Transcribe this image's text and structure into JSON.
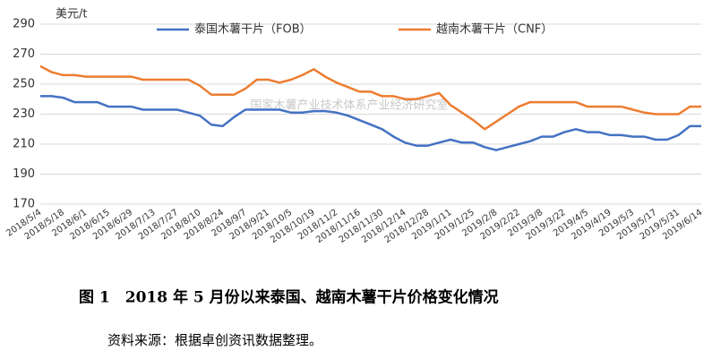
{
  "chart_data": {
    "type": "line",
    "y_label": "美元/t",
    "watermark": "国家木薯产业技术体系产业经济研究室",
    "caption": "图 1　2018 年 5 月份以来泰国、越南木薯干片价格变化情况",
    "source": "资料来源：根据卓创资讯数据整理。",
    "categories": [
      "2018/5/4",
      null,
      "2018/5/18",
      null,
      "2018/6/1",
      null,
      "2018/6/15",
      null,
      "2018/6/29",
      null,
      "2018/7/13",
      null,
      "2018/7/27",
      null,
      "2018/8/10",
      null,
      "2018/8/24",
      null,
      "2018/9/7",
      null,
      "2018/9/21",
      null,
      "2018/10/5",
      null,
      "2018/10/19",
      null,
      "2018/11/2",
      null,
      "2018/11/16",
      null,
      "2018/11/30",
      null,
      "2018/12/14",
      null,
      "2018/12/28",
      null,
      "2019/1/11",
      null,
      "2019/1/25",
      null,
      "2019/2/8",
      null,
      "2019/2/22",
      null,
      "2019/3/8",
      null,
      "2019/3/22",
      null,
      "2019/4/5",
      null,
      "2019/4/19",
      null,
      "2019/5/3",
      null,
      "2019/5/17",
      null,
      "2019/5/31",
      null,
      "2019/6/14"
    ],
    "series": [
      {
        "name": "泰国木薯干片（FOB）",
        "color": "#4472c4",
        "values": [
          242,
          242,
          241,
          238,
          238,
          238,
          235,
          235,
          235,
          233,
          233,
          233,
          233,
          231,
          229,
          223,
          222,
          228,
          233,
          233,
          233,
          233,
          231,
          231,
          232,
          232,
          231,
          229,
          226,
          223,
          220,
          215,
          211,
          209,
          209,
          211,
          213,
          211,
          211,
          208,
          206,
          208,
          210,
          212,
          215,
          215,
          218,
          220,
          218,
          218,
          216,
          216,
          215,
          215,
          213,
          213,
          216,
          222,
          222
        ]
      },
      {
        "name": "越南木薯干片（CNF）",
        "color": "#ed7d31",
        "values": [
          262,
          258,
          256,
          256,
          255,
          255,
          255,
          255,
          255,
          253,
          253,
          253,
          253,
          253,
          249,
          243,
          243,
          243,
          247,
          253,
          253,
          251,
          253,
          256,
          260,
          255,
          251,
          248,
          245,
          245,
          242,
          242,
          240,
          240,
          242,
          244,
          236,
          231,
          226,
          220,
          225,
          230,
          235,
          238,
          238,
          238,
          238,
          238,
          235,
          235,
          235,
          235,
          233,
          231,
          230,
          230,
          230,
          235,
          235
        ]
      }
    ],
    "ylim": [
      170,
      290
    ],
    "yticks": [
      170,
      190,
      210,
      230,
      250,
      270,
      290
    ],
    "grid": true
  }
}
